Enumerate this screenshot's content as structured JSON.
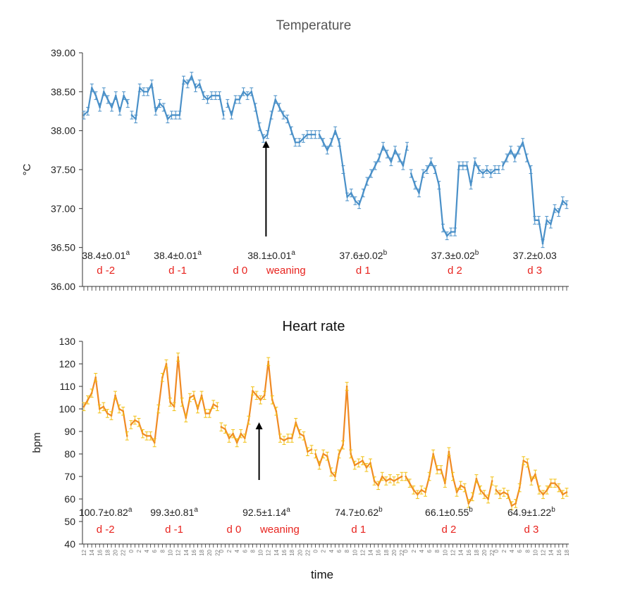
{
  "colors": {
    "temperature_line": "#4a90c8",
    "heart_line": "#f08a24",
    "heart_error": "#f2c012",
    "day_label": "#e8231e",
    "text": "#222222",
    "axis": "#333333"
  },
  "chart_data": [
    {
      "id": "temperature",
      "type": "line",
      "title": "Temperature",
      "ylabel": "°C",
      "xlabel": "",
      "ylim": [
        36.0,
        39.0
      ],
      "yticks": [
        "36.00",
        "36.50",
        "37.00",
        "37.50",
        "38.00",
        "38.50",
        "39.00"
      ],
      "ytick_values": [
        36.0,
        36.5,
        37.0,
        37.5,
        38.0,
        38.5,
        39.0
      ],
      "hour_step": 1,
      "error_bars": true,
      "grid": false,
      "legend": "none",
      "days": [
        {
          "label": "d -2",
          "stat": "38.4±0.01",
          "sup": "a",
          "start_hour": 12,
          "values": [
            38.2,
            38.25,
            38.55,
            38.45,
            38.3,
            38.5,
            38.4,
            38.3,
            38.45,
            38.25,
            38.45,
            38.35
          ]
        },
        {
          "label": "d -1",
          "stat": "38.4±0.01",
          "sup": "a",
          "start_hour": 0,
          "values": [
            38.2,
            38.15,
            38.55,
            38.5,
            38.5,
            38.6,
            38.25,
            38.35,
            38.3,
            38.15,
            38.2,
            38.2,
            38.2,
            38.65,
            38.6,
            38.7,
            38.55,
            38.6,
            38.45,
            38.4,
            38.45,
            38.45,
            38.45,
            38.2
          ]
        },
        {
          "label": "d 0",
          "extra_label": "weaning",
          "stat": "38.1±0.01",
          "sup": "a",
          "start_hour": 0,
          "values": [
            38.35,
            38.2,
            38.4,
            38.4,
            38.5,
            38.45,
            38.5,
            38.3,
            38.05,
            37.9,
            37.95,
            38.2,
            38.4,
            38.3,
            38.2,
            38.15,
            38.0,
            37.85,
            37.85,
            37.9,
            37.95,
            37.95,
            37.95
          ]
        },
        {
          "label": "d 1",
          "stat": "37.6±0.02",
          "sup": "b",
          "start_hour": 0,
          "values": [
            37.95,
            37.85,
            37.75,
            37.85,
            38.0,
            37.85,
            37.5,
            37.15,
            37.2,
            37.1,
            37.05,
            37.2,
            37.35,
            37.45,
            37.55,
            37.65,
            37.8,
            37.7,
            37.6,
            37.75,
            37.65,
            37.55,
            37.8
          ]
        },
        {
          "label": "d 2",
          "stat": "37.3±0.02",
          "sup": "b",
          "start_hour": 0,
          "values": [
            37.45,
            37.3,
            37.2,
            37.45,
            37.5,
            37.6,
            37.5,
            37.3,
            36.75,
            36.65,
            36.7,
            36.7,
            37.55,
            37.55,
            37.55,
            37.3,
            37.6,
            37.5,
            37.45,
            37.5,
            37.45,
            37.5,
            37.5
          ]
        },
        {
          "label": "d 3",
          "stat": "37.2±0.03",
          "sup": "",
          "start_hour": 0,
          "values": [
            37.55,
            37.65,
            37.75,
            37.65,
            37.75,
            37.85,
            37.65,
            37.5,
            36.85,
            36.85,
            36.55,
            36.85,
            36.8,
            37.0,
            36.95,
            37.1,
            37.05
          ]
        }
      ],
      "annotation": {
        "type": "arrow",
        "day": 2,
        "hour": 10
      }
    },
    {
      "id": "heart_rate",
      "type": "line",
      "title": "Heart rate",
      "ylabel": "bpm",
      "xlabel": "time",
      "ylim": [
        40,
        130
      ],
      "yticks": [
        "40",
        "50",
        "60",
        "70",
        "80",
        "90",
        "100",
        "110",
        "120",
        "130"
      ],
      "ytick_values": [
        40,
        50,
        60,
        70,
        80,
        90,
        100,
        110,
        120,
        130
      ],
      "hour_step": 1,
      "error_bars": true,
      "grid": false,
      "legend": "none",
      "days": [
        {
          "label": "d -2",
          "stat": "100.7±0.82",
          "sup": "a",
          "start_hour": 12,
          "values": [
            101,
            104,
            107,
            114,
            100,
            101,
            98,
            97,
            106,
            100,
            99,
            88
          ]
        },
        {
          "label": "d -1",
          "stat": "99.3±0.81",
          "sup": "a",
          "start_hour": 0,
          "values": [
            93,
            95,
            94,
            89,
            88,
            88,
            85,
            100,
            114,
            120,
            103,
            101,
            123,
            103,
            96,
            105,
            106,
            100,
            106,
            98,
            98,
            102,
            101
          ]
        },
        {
          "label": "d 0",
          "extra_label": "weaning",
          "stat": "92.5±1.14",
          "sup": "a",
          "start_hour": 0,
          "values": [
            92,
            91,
            87,
            89,
            85,
            89,
            87,
            95,
            108,
            106,
            104,
            106,
            121,
            104,
            99,
            87,
            86,
            87,
            87,
            94,
            89,
            88,
            81,
            82
          ]
        },
        {
          "label": "d 1",
          "stat": "74.7±0.62",
          "sup": "b",
          "start_hour": 0,
          "values": [
            80,
            75,
            80,
            79,
            72,
            70,
            80,
            84,
            110,
            80,
            75,
            76,
            77,
            74,
            76,
            68,
            66,
            70,
            68,
            69,
            68,
            69,
            70
          ]
        },
        {
          "label": "d 2",
          "stat": "66.1±0.55",
          "sup": "b",
          "start_hour": 0,
          "values": [
            70,
            67,
            64,
            62,
            64,
            63,
            70,
            80,
            73,
            73,
            67,
            81,
            70,
            63,
            66,
            65,
            58,
            61,
            69,
            64,
            62,
            60,
            68
          ]
        },
        {
          "label": "d 3",
          "stat": "64.9±1.22",
          "sup": "b",
          "start_hour": 0,
          "values": [
            64,
            62,
            63,
            62,
            57,
            58,
            65,
            77,
            76,
            68,
            71,
            64,
            62,
            64,
            67,
            67,
            65,
            62,
            63
          ]
        }
      ],
      "tick_labels": [
        "12",
        "14",
        "16",
        "18",
        "20",
        "22",
        "0",
        "2",
        "4",
        "6",
        "8",
        "10",
        "12",
        "14",
        "16",
        "18",
        "20",
        "22"
      ],
      "annotation": {
        "type": "arrow",
        "day": 2,
        "hour": 10
      }
    }
  ]
}
